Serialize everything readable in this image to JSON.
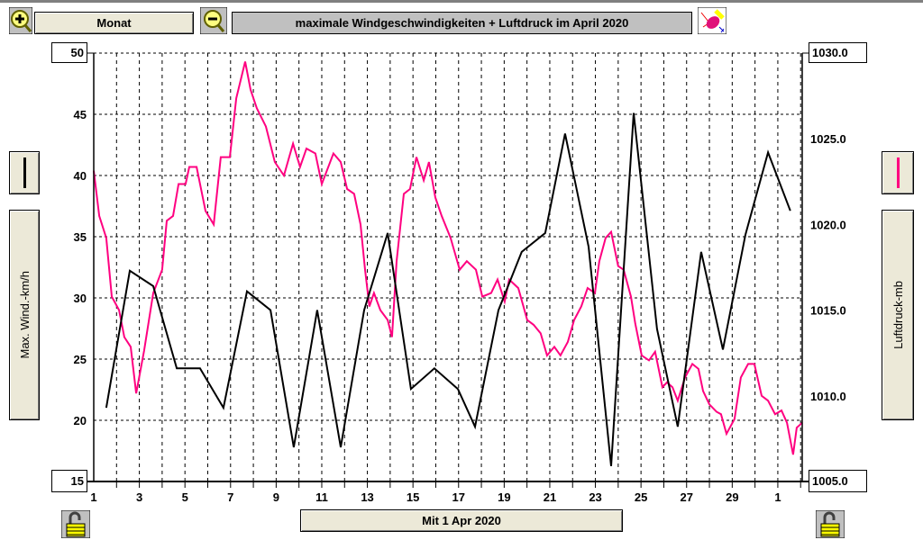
{
  "toolbar": {
    "period_label": "Monat",
    "title": "maximale Windgeschwindigkeiten + Luftdruck im April 2020",
    "date_label": "Mit 1 Apr 2020"
  },
  "colors": {
    "wind": "#ff0080",
    "pressure": "#000000",
    "title_bg": "#c0c0c0",
    "button_bg": "#ece9d8"
  },
  "chart_data": {
    "type": "line",
    "title": "maximale Windgeschwindigkeiten + Luftdruck im April 2020",
    "xlabel": "Mit 1 Apr 2020",
    "ylabel": "Max. Wind.-km/h",
    "y2label": "Luftdruck-mb",
    "xlim": [
      1,
      32.07
    ],
    "ylim": [
      15,
      50
    ],
    "y2lim": [
      1005,
      1030
    ],
    "x_ticks": [
      {
        "v": 1,
        "l": "1"
      },
      {
        "v": 3,
        "l": "3"
      },
      {
        "v": 5,
        "l": "5"
      },
      {
        "v": 7,
        "l": "7"
      },
      {
        "v": 9,
        "l": "9"
      },
      {
        "v": 11,
        "l": "11"
      },
      {
        "v": 13,
        "l": "13"
      },
      {
        "v": 15,
        "l": "15"
      },
      {
        "v": 17,
        "l": "17"
      },
      {
        "v": 19,
        "l": "19"
      },
      {
        "v": 21,
        "l": "21"
      },
      {
        "v": 23,
        "l": "23"
      },
      {
        "v": 25,
        "l": "25"
      },
      {
        "v": 27,
        "l": "27"
      },
      {
        "v": 29,
        "l": "29"
      },
      {
        "v": 31,
        "l": "1"
      }
    ],
    "y_ticks": [
      "15",
      "20",
      "25",
      "30",
      "35",
      "40",
      "45",
      "50"
    ],
    "y2_ticks": [
      "1005.0",
      "1010.0",
      "1015.0",
      "1020.0",
      "1025.0",
      "1030.0"
    ],
    "grid": true,
    "series": [
      {
        "name": "Max. Wind.-km/h",
        "axis": "left",
        "color": "#ff0080",
        "x": [
          1.0,
          1.24,
          1.55,
          1.79,
          2.11,
          2.34,
          2.62,
          2.86,
          3.21,
          3.61,
          4.0,
          4.2,
          4.48,
          4.72,
          5.03,
          5.19,
          5.51,
          5.9,
          6.26,
          6.57,
          6.97,
          7.25,
          7.64,
          7.88,
          8.15,
          8.55,
          8.94,
          9.34,
          9.74,
          10.05,
          10.33,
          10.72,
          11.0,
          11.51,
          11.83,
          12.11,
          12.42,
          12.7,
          12.9,
          13.09,
          13.29,
          13.57,
          13.89,
          14.08,
          14.28,
          14.6,
          14.87,
          15.15,
          15.47,
          15.7,
          15.98,
          16.26,
          16.65,
          17.05,
          17.36,
          17.76,
          18.04,
          18.43,
          18.71,
          19.02,
          19.22,
          19.62,
          20.01,
          20.29,
          20.6,
          20.88,
          21.2,
          21.47,
          21.79,
          22.07,
          22.38,
          22.66,
          22.98,
          23.17,
          23.45,
          23.69,
          24.0,
          24.24,
          24.56,
          24.75,
          25.03,
          25.35,
          25.62,
          25.94,
          26.14,
          26.38,
          26.61,
          26.93,
          27.25,
          27.52,
          27.72,
          28.0,
          28.31,
          28.51,
          28.75,
          29.1,
          29.38,
          29.7,
          29.97,
          30.29,
          30.57,
          30.88,
          31.16,
          31.4,
          31.67,
          31.83,
          32.07
        ],
        "y": [
          40.4,
          36.7,
          34.9,
          30.1,
          29.0,
          26.8,
          26.0,
          22.2,
          25.7,
          30.4,
          32.3,
          36.3,
          36.7,
          39.3,
          39.3,
          40.7,
          40.7,
          37.1,
          36.0,
          41.5,
          41.5,
          46.3,
          49.3,
          47.0,
          45.5,
          44.0,
          41.1,
          40.0,
          42.6,
          40.7,
          42.2,
          41.8,
          39.3,
          41.8,
          41.1,
          38.9,
          38.5,
          36.0,
          32.3,
          29.3,
          30.4,
          29.0,
          28.2,
          26.8,
          33.0,
          38.5,
          38.9,
          41.5,
          39.6,
          41.1,
          38.2,
          36.7,
          34.9,
          32.3,
          33.0,
          32.3,
          30.1,
          30.4,
          31.5,
          29.7,
          31.5,
          30.8,
          28.2,
          27.8,
          27.1,
          25.3,
          26.0,
          25.3,
          26.4,
          28.2,
          29.3,
          30.8,
          30.4,
          33.0,
          34.9,
          35.4,
          32.6,
          32.3,
          30.1,
          27.9,
          25.3,
          24.9,
          25.6,
          22.7,
          23.1,
          22.7,
          21.6,
          23.5,
          24.6,
          24.2,
          22.4,
          21.3,
          20.7,
          20.5,
          18.9,
          20.1,
          23.5,
          24.6,
          24.6,
          22.0,
          21.6,
          20.5,
          20.8,
          19.8,
          17.2,
          19.4,
          19.8
        ]
      },
      {
        "name": "Luftdruck-mb",
        "axis": "right",
        "color": "#000000",
        "x": [
          1.55,
          2.58,
          3.61,
          4.64,
          5.66,
          6.69,
          7.72,
          8.75,
          9.77,
          10.8,
          11.83,
          12.86,
          13.89,
          14.91,
          15.94,
          16.97,
          17.72,
          18.75,
          19.77,
          20.8,
          21.67,
          22.7,
          23.69,
          24.68,
          25.7,
          26.61,
          27.64,
          28.59,
          29.58,
          30.57,
          31.55
        ],
        "y": [
          1009.3,
          1017.3,
          1016.4,
          1011.6,
          1011.6,
          1009.3,
          1016.1,
          1015.0,
          1007.0,
          1015.0,
          1007.0,
          1015.0,
          1019.5,
          1010.4,
          1011.6,
          1010.4,
          1008.2,
          1015.0,
          1018.4,
          1019.5,
          1025.3,
          1018.7,
          1005.9,
          1026.5,
          1013.9,
          1008.2,
          1018.4,
          1012.7,
          1019.4,
          1024.2,
          1020.8
        ]
      }
    ]
  }
}
